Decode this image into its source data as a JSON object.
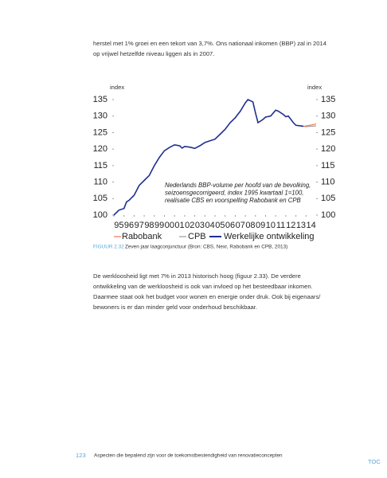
{
  "intro": {
    "lines": [
      "herstel met 1% groei en een tekort van 3,7%. Ons nationaal inkomen (BBP) zal in 2014",
      "op vrijwel hetzelfde niveau liggen als in 2007."
    ]
  },
  "figure": {
    "chart_data": {
      "type": "line",
      "y_label": "index",
      "y2_label": "index",
      "annotation": [
        "Nederlands BBP-volume per hoofd van de bevolking,",
        "seizoensgecorrigeerd, index 1995 kwartaal 1=100,",
        "realisatie CBS en voorspelling Rabobank en CPB"
      ],
      "xlim": [
        1995,
        2015
      ],
      "xticks": [
        {
          "value": 1995,
          "label": "95"
        },
        {
          "value": 1996,
          "label": "96"
        },
        {
          "value": 1997,
          "label": "97"
        },
        {
          "value": 1998,
          "label": "98"
        },
        {
          "value": 1999,
          "label": "99"
        },
        {
          "value": 2000,
          "label": "00"
        },
        {
          "value": 2001,
          "label": "01"
        },
        {
          "value": 2002,
          "label": "02"
        },
        {
          "value": 2003,
          "label": "03"
        },
        {
          "value": 2004,
          "label": "04"
        },
        {
          "value": 2005,
          "label": "05"
        },
        {
          "value": 2006,
          "label": "06"
        },
        {
          "value": 2007,
          "label": "07"
        },
        {
          "value": 2008,
          "label": "08"
        },
        {
          "value": 2009,
          "label": "09"
        },
        {
          "value": 2010,
          "label": "10"
        },
        {
          "value": 2011,
          "label": "11"
        },
        {
          "value": 2012,
          "label": "12"
        },
        {
          "value": 2013,
          "label": "13"
        },
        {
          "value": 2014,
          "label": "14"
        }
      ],
      "ylim": [
        100,
        135
      ],
      "yticks": [
        100,
        105,
        110,
        115,
        120,
        125,
        130,
        135
      ],
      "y2lim": [
        100,
        135
      ],
      "y2ticks": [
        100,
        105,
        110,
        115,
        120,
        125,
        130,
        135
      ],
      "series": [
        {
          "name": "Rabobank",
          "color": "#e8774a",
          "x": [
            2013.75,
            2014,
            2014.5,
            2015
          ],
          "values": [
            126.9,
            127,
            127.3,
            127.6
          ]
        },
        {
          "name": "CPB",
          "color": "#9a9a9a",
          "x": [
            2013.75,
            2014,
            2014.5,
            2015
          ],
          "values": [
            126.9,
            126.8,
            126.9,
            127
          ]
        },
        {
          "name": "Werkelijke ontwikkeling",
          "color": "#1f2f8f",
          "x": [
            1995,
            1995.5,
            1996,
            1996.25,
            1996.5,
            1997,
            1997.5,
            1998,
            1998.5,
            1999,
            1999.5,
            2000,
            2000.5,
            2001,
            2001.5,
            2001.75,
            2002,
            2002.5,
            2003,
            2003.5,
            2004,
            2004.5,
            2005,
            2005.5,
            2006,
            2006.5,
            2007,
            2007.5,
            2008,
            2008.25,
            2008.75,
            2009,
            2009.25,
            2009.75,
            2010,
            2010.5,
            2011,
            2011.25,
            2011.75,
            2012,
            2012.25,
            2012.75,
            2013,
            2013.5,
            2013.75
          ],
          "values": [
            100,
            101.5,
            102,
            104,
            104.5,
            106,
            109,
            110.5,
            112,
            115,
            117.5,
            119.5,
            120.5,
            121.3,
            121,
            120.3,
            120.8,
            120.6,
            120.2,
            121,
            122,
            122.5,
            123,
            124.5,
            126,
            128,
            129.5,
            131.5,
            134,
            135,
            134.3,
            131,
            128,
            129,
            129.7,
            130,
            131.8,
            131.5,
            130.5,
            129.8,
            130,
            128,
            127.2,
            127,
            126.9
          ]
        }
      ]
    },
    "caption": {
      "label": "FIGUUR 2.32",
      "text": "Zeven jaar laagconjunctuur (Bron: CBS, Nexr, Rabobank en CPB, 2013)"
    }
  },
  "body": {
    "lines": [
      "De werkloosheid ligt met 7% in 2013 historisch hoog (figuur 2.33). De verdere",
      "ontwikkeling van de werkloosheid is ook van invloed op het besteedbaar inkomen.",
      "Daarmee staat ook het budget voor wonen en energie onder druk. Ook bij eigenaars/",
      "bewoners is er dan minder geld voor onderhoud beschikbaar."
    ]
  },
  "footer": {
    "page_number": "123",
    "title": "Aspecten die bepalend zijn voor de toekomstbestendigheid van renovatieconcepten",
    "toc": "TOC"
  }
}
